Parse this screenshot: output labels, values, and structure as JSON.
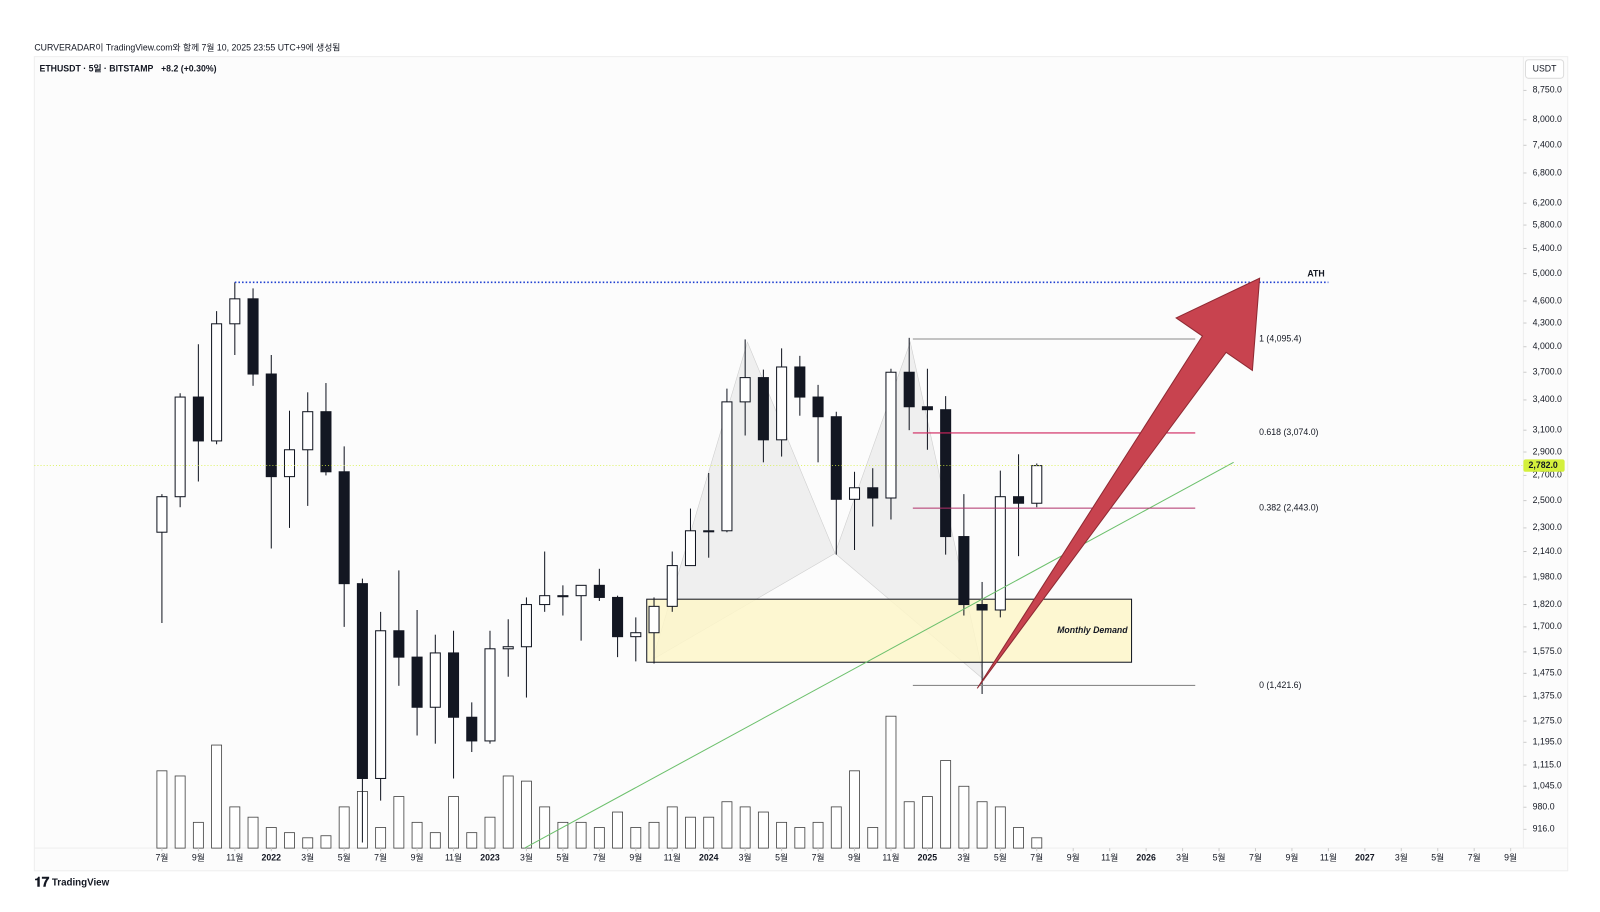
{
  "header": {
    "caption": "CURVERADAR이 TradingView.com와 함께 7월 10, 2025 23:55 UTC+9에 생성됨"
  },
  "chart_data": {
    "type": "candlestick",
    "symbol": "ETHUSDT · 5일 · BITSTAMP",
    "change": "+8.2 (+0.30%)",
    "currency": "USDT",
    "x": [
      0,
      1,
      2,
      3,
      4,
      5,
      6,
      7,
      8,
      9,
      10,
      11,
      12,
      13,
      14,
      15,
      16,
      17,
      18,
      19,
      20,
      21,
      22,
      23,
      24,
      25,
      26,
      27,
      28,
      29,
      30,
      31,
      32,
      33,
      34,
      35,
      36,
      37,
      38,
      39,
      40,
      41,
      42,
      43,
      44,
      45,
      46,
      47,
      48
    ],
    "open": [
      2270,
      2530,
      3430,
      3000,
      4290,
      4630,
      3680,
      2690,
      2920,
      3280,
      2730,
      1940,
      1070,
      1680,
      1550,
      1330,
      1570,
      1290,
      1200,
      1590,
      1600,
      1820,
      1870,
      1870,
      1930,
      1860,
      1650,
      1670,
      1810,
      2050,
      2280,
      2280,
      3380,
      3640,
      3010,
      3760,
      3430,
      3230,
      2510,
      2600,
      2520,
      3700,
      3330,
      3300,
      2240,
      1820,
      1790,
      2530,
      2480
    ],
    "high": [
      2550,
      3470,
      4030,
      4460,
      4870,
      4780,
      3900,
      3290,
      3480,
      3580,
      2950,
      1970,
      1780,
      2020,
      1790,
      1660,
      1680,
      1350,
      1680,
      1740,
      1860,
      2140,
      1930,
      1930,
      2030,
      1870,
      1750,
      1860,
      2140,
      2440,
      2720,
      3520,
      4090,
      3730,
      3980,
      3890,
      3560,
      3280,
      2730,
      2760,
      3740,
      4110,
      3740,
      3440,
      2550,
      1950,
      2740,
      2880,
      2800
    ],
    "low": [
      1720,
      2450,
      2650,
      2970,
      3900,
      3550,
      2160,
      2300,
      2460,
      2700,
      1700,
      880,
      1000,
      1420,
      1220,
      1190,
      1070,
      1160,
      1190,
      1460,
      1370,
      1780,
      1760,
      1630,
      1840,
      1550,
      1530,
      1520,
      1780,
      2050,
      2100,
      2270,
      3050,
      2810,
      2860,
      3240,
      2810,
      2120,
      2150,
      2310,
      2360,
      3100,
      2920,
      2120,
      1760,
      1385,
      1750,
      2110,
      2450
    ],
    "close": [
      2530,
      3430,
      3000,
      4290,
      4630,
      3680,
      2690,
      2920,
      3280,
      2730,
      1940,
      1070,
      1680,
      1550,
      1330,
      1570,
      1290,
      1200,
      1590,
      1600,
      1820,
      1870,
      1870,
      1930,
      1860,
      1650,
      1670,
      1810,
      2050,
      2280,
      2280,
      3380,
      3640,
      3010,
      3760,
      3430,
      3230,
      2510,
      2600,
      2520,
      3700,
      3330,
      3300,
      2240,
      1820,
      1790,
      2530,
      2480,
      2782
    ],
    "volume": [
      75,
      70,
      25,
      100,
      40,
      30,
      20,
      15,
      10,
      12,
      40,
      55,
      20,
      50,
      25,
      15,
      50,
      15,
      30,
      70,
      65,
      40,
      25,
      25,
      20,
      35,
      20,
      25,
      40,
      30,
      30,
      45,
      40,
      35,
      25,
      20,
      25,
      40,
      75,
      20,
      128,
      45,
      50,
      85,
      60,
      45,
      40,
      20,
      10
    ],
    "volume_lim": [
      0,
      140
    ],
    "up_color": "#ffffff",
    "down_color": "#131722",
    "xlim": [
      -7,
      74.7
    ],
    "xticks": [
      {
        "value": 0,
        "label": "7월"
      },
      {
        "value": 2,
        "label": "9월"
      },
      {
        "value": 4,
        "label": "11월"
      },
      {
        "value": 6,
        "label": "2022"
      },
      {
        "value": 8,
        "label": "3월"
      },
      {
        "value": 10,
        "label": "5월"
      },
      {
        "value": 12,
        "label": "7월"
      },
      {
        "value": 14,
        "label": "9월"
      },
      {
        "value": 16,
        "label": "11월"
      },
      {
        "value": 18,
        "label": "2023"
      },
      {
        "value": 20,
        "label": "3월"
      },
      {
        "value": 22,
        "label": "5월"
      },
      {
        "value": 24,
        "label": "7월"
      },
      {
        "value": 26,
        "label": "9월"
      },
      {
        "value": 28,
        "label": "11월"
      },
      {
        "value": 30,
        "label": "2024"
      },
      {
        "value": 32,
        "label": "3월"
      },
      {
        "value": 34,
        "label": "5월"
      },
      {
        "value": 36,
        "label": "7월"
      },
      {
        "value": 38,
        "label": "9월"
      },
      {
        "value": 40,
        "label": "11월"
      },
      {
        "value": 42,
        "label": "2025"
      },
      {
        "value": 44,
        "label": "3월"
      },
      {
        "value": 46,
        "label": "5월"
      },
      {
        "value": 48,
        "label": "7월"
      },
      {
        "value": 50,
        "label": "9월"
      },
      {
        "value": 52,
        "label": "11월"
      },
      {
        "value": 54,
        "label": "2026"
      },
      {
        "value": 56,
        "label": "3월"
      },
      {
        "value": 58,
        "label": "5월"
      },
      {
        "value": 60,
        "label": "7월"
      },
      {
        "value": 62,
        "label": "9월"
      },
      {
        "value": 64,
        "label": "11월"
      },
      {
        "value": 66,
        "label": "2027"
      },
      {
        "value": 68,
        "label": "3월"
      },
      {
        "value": 70,
        "label": "5월"
      },
      {
        "value": 72,
        "label": "7월"
      },
      {
        "value": 74,
        "label": "9월"
      }
    ],
    "ylim": [
      865,
      9700
    ],
    "log_scale": true,
    "yticks": [
      {
        "value": 8750,
        "label": "8,750.0"
      },
      {
        "value": 8000,
        "label": "8,000.0"
      },
      {
        "value": 7400,
        "label": "7,400.0"
      },
      {
        "value": 6800,
        "label": "6,800.0"
      },
      {
        "value": 6200,
        "label": "6,200.0"
      },
      {
        "value": 5800,
        "label": "5,800.0"
      },
      {
        "value": 5400,
        "label": "5,400.0"
      },
      {
        "value": 5000,
        "label": "5,000.0"
      },
      {
        "value": 4600,
        "label": "4,600.0"
      },
      {
        "value": 4300,
        "label": "4,300.0"
      },
      {
        "value": 4000,
        "label": "4,000.0"
      },
      {
        "value": 3700,
        "label": "3,700.0"
      },
      {
        "value": 3400,
        "label": "3,400.0"
      },
      {
        "value": 3100,
        "label": "3,100.0"
      },
      {
        "value": 2900,
        "label": "2,900.0"
      },
      {
        "value": 2700,
        "label": "2,700.0"
      },
      {
        "value": 2500,
        "label": "2,500.0"
      },
      {
        "value": 2300,
        "label": "2,300.0"
      },
      {
        "value": 2140,
        "label": "2,140.0"
      },
      {
        "value": 1980,
        "label": "1,980.0"
      },
      {
        "value": 1820,
        "label": "1,820.0"
      },
      {
        "value": 1700,
        "label": "1,700.0"
      },
      {
        "value": 1575,
        "label": "1,575.0"
      },
      {
        "value": 1475,
        "label": "1,475.0"
      },
      {
        "value": 1375,
        "label": "1,375.0"
      },
      {
        "value": 1275,
        "label": "1,275.0"
      },
      {
        "value": 1195,
        "label": "1,195.0"
      },
      {
        "value": 1115,
        "label": "1,115.0"
      },
      {
        "value": 1045,
        "label": "1,045.0"
      },
      {
        "value": 980,
        "label": "980.0"
      },
      {
        "value": 916,
        "label": "916.0"
      }
    ],
    "last_price": {
      "value": 2782,
      "label": "2,782.0",
      "color": "#d4f03c"
    },
    "ath": {
      "value": 4870,
      "label": "ATH",
      "color": "#1e3fd0",
      "x": [
        4,
        64
      ]
    },
    "fib_x": [
      41.2,
      60.2
    ],
    "fib_levels": [
      {
        "value": 4095.4,
        "label": "1 (4,095.4)",
        "color": "#8a8a8a"
      },
      {
        "value": 3074.0,
        "label": "0.618 (3,074.0)",
        "color": "#d0245e"
      },
      {
        "value": 2443.0,
        "label": "0.382 (2,443.0)",
        "color": "#b0306a"
      },
      {
        "value": 1421.6,
        "label": "0 (1,421.6)",
        "color": "#8a8a8a"
      }
    ],
    "demand_zone": {
      "label": "Monthly Demand",
      "low": 1526,
      "high": 1850,
      "x": [
        26.6,
        53.2
      ]
    },
    "trendline": {
      "x": [
        19.9,
        58.8
      ],
      "y": [
        865,
        2810
      ],
      "color": "#6cc06c"
    }
  },
  "footer": {
    "brand": "TradingView"
  }
}
